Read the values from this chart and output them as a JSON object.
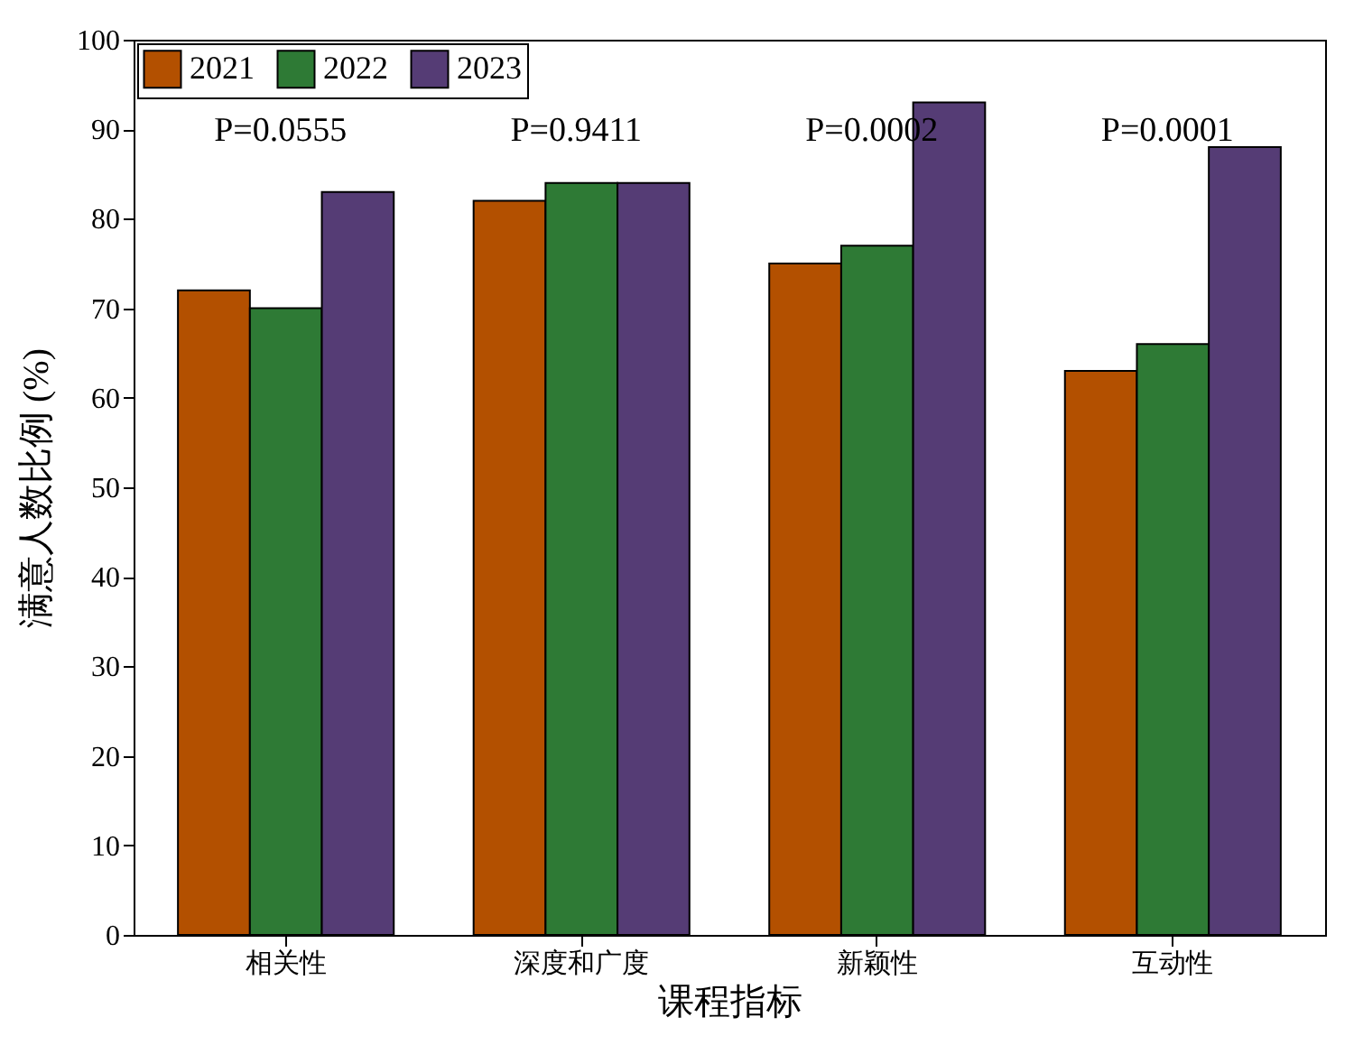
{
  "chart_data": {
    "type": "bar",
    "xlabel": "课程指标",
    "ylabel": "满意人数比例 (%)",
    "categories": [
      "相关性",
      "深度和广度",
      "新颖性",
      "互动性"
    ],
    "series": [
      {
        "name": "2021",
        "color": "#b35000",
        "values": [
          72,
          82,
          75,
          63
        ]
      },
      {
        "name": "2022",
        "color": "#2e7a35",
        "values": [
          70,
          84,
          77,
          66
        ]
      },
      {
        "name": "2023",
        "color": "#553c75",
        "values": [
          83,
          84,
          93,
          88
        ]
      }
    ],
    "ylim": [
      0,
      100
    ],
    "yticks": [
      0,
      10,
      20,
      30,
      40,
      50,
      60,
      70,
      80,
      90,
      100
    ],
    "grid": false,
    "legend": "top left",
    "annotations": [
      "P=0.0555",
      "P=0.9411",
      "P=0.0002",
      "P=0.0001"
    ]
  }
}
